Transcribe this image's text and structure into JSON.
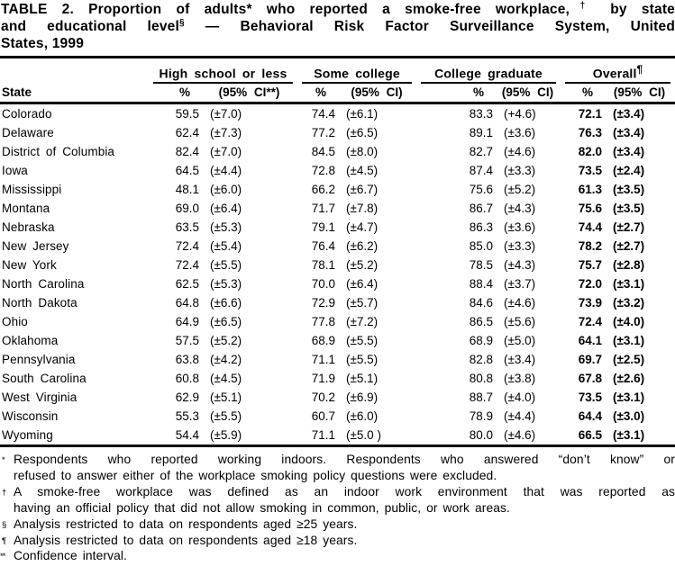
{
  "title": {
    "line1": {
      "text": "TABLE 2. Proportion of adults* who reported a smoke-free workplace,",
      "sup": "†",
      "tail": " by state"
    },
    "line2": {
      "text": "and educational level",
      "sup": "§",
      "tail": " — Behavioral Risk Factor Surveillance System, United"
    },
    "line3": "States, 1999"
  },
  "table": {
    "state_header": "State",
    "groups": [
      {
        "label": "High school or less",
        "sup": "",
        "pct": "%",
        "ci": "(95% CI**)"
      },
      {
        "label": "Some college",
        "sup": "",
        "pct": "%",
        "ci": "(95% CI)"
      },
      {
        "label": "College graduate",
        "sup": "",
        "pct": "%",
        "ci": "(95% CI)"
      },
      {
        "label": "Overall",
        "sup": "¶",
        "pct": "%",
        "ci": "(95% CI)"
      }
    ],
    "rows": [
      {
        "state": "Colorado",
        "values": [
          "59.5",
          "(±7.0)",
          "74.4",
          "(±6.1)",
          "83.3",
          "(+4.6)",
          "72.1",
          "(±3.4)"
        ]
      },
      {
        "state": "Delaware",
        "values": [
          "62.4",
          "(±7.3)",
          "77.2",
          "(±6.5)",
          "89.1",
          "(±3.6)",
          "76.3",
          "(±3.4)"
        ]
      },
      {
        "state": "District of Columbia",
        "values": [
          "82.4",
          "(±7.0)",
          "84.5",
          "(±8.0)",
          "82.7",
          "(±4.6)",
          "82.0",
          "(±3.4)"
        ]
      },
      {
        "state": "Iowa",
        "values": [
          "64.5",
          "(±4.4)",
          "72.8",
          "(±4.5)",
          "87.4",
          "(±3.3)",
          "73.5",
          "(±2.4)"
        ]
      },
      {
        "state": "Mississippi",
        "values": [
          "48.1",
          "(±6.0)",
          "66.2",
          "(±6.7)",
          "75.6",
          "(±5.2)",
          "61.3",
          "(±3.5)"
        ]
      },
      {
        "state": "Montana",
        "values": [
          "69.0",
          "(±6.4)",
          "71.7",
          "(±7.8)",
          "86.7",
          "(±4.3)",
          "75.6",
          "(±3.5)"
        ]
      },
      {
        "state": "Nebraska",
        "values": [
          "63.5",
          "(±5.3)",
          "79.1",
          "(±4.7)",
          "86.3",
          "(±3.6)",
          "74.4",
          "(±2.7)"
        ]
      },
      {
        "state": "New Jersey",
        "values": [
          "72.4",
          "(±5.4)",
          "76.4",
          "(±6.2)",
          "85.0",
          "(±3.3)",
          "78.2",
          "(±2.7)"
        ]
      },
      {
        "state": "New York",
        "values": [
          "72.4",
          "(±5.5)",
          "78.1",
          "(±5.2)",
          "78.5",
          "(±4.3)",
          "75.7",
          "(±2.8)"
        ]
      },
      {
        "state": "North Carolina",
        "values": [
          "62.5",
          "(±5.3)",
          "70.0",
          "(±6.4)",
          "88.4",
          "(±3.7)",
          "72.0",
          "(±3.1)"
        ]
      },
      {
        "state": "North Dakota",
        "values": [
          "64.8",
          "(±6.6)",
          "72.9",
          "(±5.7)",
          "84.6",
          "(±4.6)",
          "73.9",
          "(±3.2)"
        ]
      },
      {
        "state": "Ohio",
        "values": [
          "64.9",
          "(±6.5)",
          "77.8",
          "(±7.2)",
          "86.5",
          "(±5.6)",
          "72.4",
          "(±4.0)"
        ]
      },
      {
        "state": "Oklahoma",
        "values": [
          "57.5",
          "(±5.2)",
          "68.9",
          "(±5.5)",
          "68.9",
          "(±5.0)",
          "64.1",
          "(±3.1)"
        ]
      },
      {
        "state": "Pennsylvania",
        "values": [
          "63.8",
          "(±4.2)",
          "71.1",
          "(±5.5)",
          "82.8",
          "(±3.4)",
          "69.7",
          "(±2.5)"
        ]
      },
      {
        "state": "South Carolina",
        "values": [
          "60.8",
          "(±4.5)",
          "71.9",
          "(±5.1)",
          "80.8",
          "(±3.8)",
          "67.8",
          "(±2.6)"
        ]
      },
      {
        "state": "West Virginia",
        "values": [
          "62.9",
          "(±5.1)",
          "70.2",
          "(±6.9)",
          "88.7",
          "(±4.0)",
          "73.5",
          "(±3.1)"
        ]
      },
      {
        "state": "Wisconsin",
        "values": [
          "55.3",
          "(±5.5)",
          "60.7",
          "(±6.0)",
          "78.9",
          "(±4.4)",
          "64.4",
          "(±3.0)"
        ]
      },
      {
        "state": "Wyoming",
        "values": [
          "54.4",
          "(±5.9)",
          "71.1",
          "(±5.0 )",
          "80.0",
          "(±4.6)",
          "66.5",
          "(±3.1)"
        ]
      }
    ]
  },
  "footnotes": [
    {
      "marker": "*",
      "lines": [
        "Respondents who reported working indoors. Respondents who answered “don’t know” or",
        "refused to answer either of the workplace smoking policy questions were excluded."
      ]
    },
    {
      "marker": "†",
      "lines": [
        "A smoke-free workplace was defined as an indoor work environment that was reported as",
        "having an official policy that did not allow smoking in common, public, or work areas."
      ]
    },
    {
      "marker": "§",
      "lines": [
        "Analysis restricted to data on respondents aged ≥25 years."
      ]
    },
    {
      "marker": "¶",
      "lines": [
        "Analysis restricted to data on respondents aged ≥18 years."
      ]
    },
    {
      "marker": "**",
      "lines": [
        "Confidence interval."
      ]
    }
  ]
}
